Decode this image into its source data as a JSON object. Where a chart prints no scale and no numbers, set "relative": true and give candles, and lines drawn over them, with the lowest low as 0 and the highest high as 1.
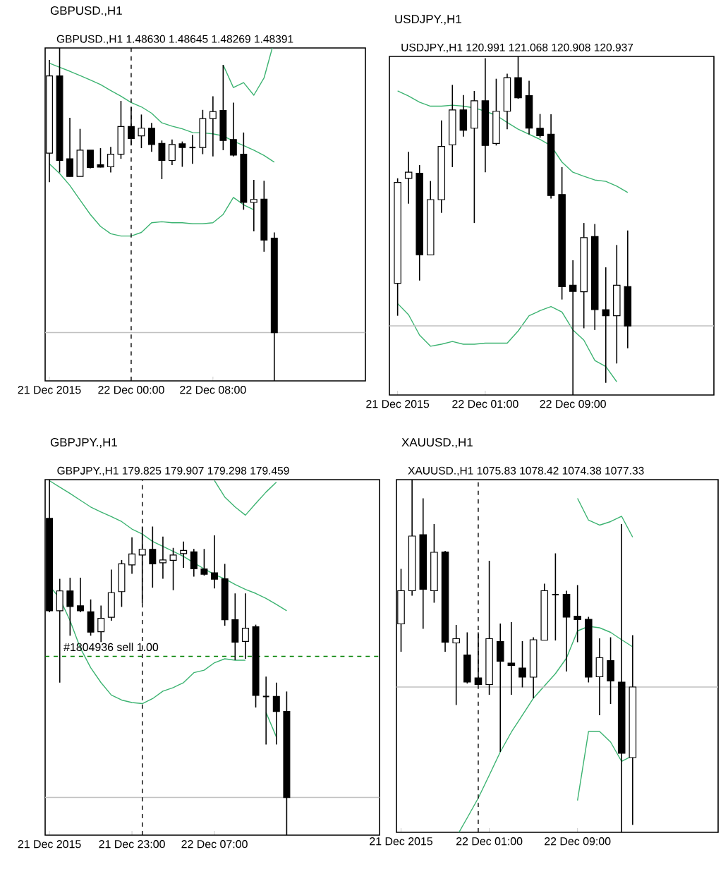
{
  "chart_data": [
    {
      "type": "candlestick",
      "title": "GBPUSD.,H1",
      "subtitle": "GBPUSD.,H1  1.48630 1.48645 1.48269 1.48391",
      "relative": true,
      "x": [
        "2015-12-21T16:00",
        "2015-12-21T17:00",
        "2015-12-21T18:00",
        "2015-12-21T19:00",
        "2015-12-21T20:00",
        "2015-12-21T21:00",
        "2015-12-21T22:00",
        "2015-12-21T23:00",
        "2015-12-22T00:00",
        "2015-12-22T01:00",
        "2015-12-22T02:00",
        "2015-12-22T03:00",
        "2015-12-22T04:00",
        "2015-12-22T05:00",
        "2015-12-22T06:00",
        "2015-12-22T07:00",
        "2015-12-22T08:00",
        "2015-12-22T09:00",
        "2015-12-22T10:00",
        "2015-12-22T11:00",
        "2015-12-22T12:00",
        "2015-12-22T13:00",
        "2015-12-22T14:00"
      ],
      "xlim": [
        "2015-12-21T15:35",
        "2015-12-22T22:55"
      ],
      "xticks": [
        {
          "value": "2015-12-21T16:00",
          "label": "21 Dec 2015"
        },
        {
          "value": "2015-12-22T00:00",
          "label": "22 Dec 00:00"
        },
        {
          "value": "2015-12-22T08:00",
          "label": "22 Dec 08:00"
        }
      ],
      "ohlc": [
        [
          0.684,
          0.964,
          0.597,
          0.916
        ],
        [
          0.916,
          1.0,
          0.626,
          0.662
        ],
        [
          0.667,
          0.79,
          0.614,
          0.614
        ],
        [
          0.614,
          0.757,
          0.614,
          0.693
        ],
        [
          0.693,
          0.693,
          0.638,
          0.641
        ],
        [
          0.649,
          0.699,
          0.641,
          0.642
        ],
        [
          0.643,
          0.703,
          0.626,
          0.681
        ],
        [
          0.681,
          0.841,
          0.667,
          0.764
        ],
        [
          0.764,
          0.823,
          0.707,
          0.728
        ],
        [
          0.736,
          0.8,
          0.699,
          0.759
        ],
        [
          0.759,
          0.775,
          0.688,
          0.71
        ],
        [
          0.713,
          0.722,
          0.606,
          0.662
        ],
        [
          0.662,
          0.725,
          0.648,
          0.71
        ],
        [
          0.712,
          0.719,
          0.643,
          0.701
        ],
        [
          0.701,
          0.739,
          0.652,
          0.701
        ],
        [
          0.701,
          0.814,
          0.681,
          0.788
        ],
        [
          0.788,
          0.855,
          0.674,
          0.809
        ],
        [
          0.812,
          0.949,
          0.693,
          0.722
        ],
        [
          0.725,
          0.836,
          0.674,
          0.678
        ],
        [
          0.681,
          0.746,
          0.514,
          0.536
        ],
        [
          0.536,
          0.604,
          0.449,
          0.545
        ],
        [
          0.546,
          0.601,
          0.388,
          0.423
        ],
        [
          0.429,
          0.446,
          0.0,
          0.145
        ]
      ],
      "series": [
        {
          "type": "line",
          "color": "#3cb371",
          "values": [
            null,
            null,
            null,
            null,
            null,
            null,
            null,
            null,
            null,
            null,
            null,
            null,
            null,
            null,
            null,
            null,
            null,
            0.949,
            0.881,
            0.896,
            0.858,
            0.91,
            1.022
          ]
        },
        {
          "type": "line",
          "color": "#3cb371",
          "values": [
            0.954,
            0.942,
            0.93,
            0.917,
            0.904,
            0.89,
            0.872,
            0.855,
            0.836,
            0.823,
            0.804,
            0.775,
            0.765,
            0.757,
            0.746,
            0.745,
            0.742,
            0.736,
            0.72,
            0.707,
            0.693,
            0.677,
            0.657
          ]
        },
        {
          "type": "line",
          "color": "#3cb371",
          "values": [
            0.652,
            0.623,
            0.587,
            0.543,
            0.5,
            0.464,
            0.442,
            0.435,
            0.435,
            0.446,
            0.475,
            0.478,
            0.475,
            0.475,
            0.472,
            0.472,
            0.475,
            0.5,
            0.551,
            0.529,
            0.514,
            null,
            null
          ]
        }
      ],
      "ref_lines": [
        {
          "axis": "y",
          "value": 0.145,
          "color": "#c0c0c0",
          "line_style": "solid"
        },
        {
          "axis": "x",
          "value": "2015-12-22T00:00",
          "color": "#000000",
          "line_style": "dashed"
        }
      ]
    },
    {
      "type": "candlestick",
      "title": "USDJPY.,H1",
      "subtitle": "USDJPY.,H1  120.991 121.068 120.908 120.937",
      "relative": true,
      "x": [
        "2015-12-21T17:00",
        "2015-12-21T18:00",
        "2015-12-21T19:00",
        "2015-12-21T20:00",
        "2015-12-21T21:00",
        "2015-12-21T22:00",
        "2015-12-21T23:00",
        "2015-12-22T00:00",
        "2015-12-22T01:00",
        "2015-12-22T02:00",
        "2015-12-22T03:00",
        "2015-12-22T04:00",
        "2015-12-22T05:00",
        "2015-12-22T06:00",
        "2015-12-22T07:00",
        "2015-12-22T08:00",
        "2015-12-22T09:00",
        "2015-12-22T10:00",
        "2015-12-22T11:00",
        "2015-12-22T12:00",
        "2015-12-22T13:00",
        "2015-12-22T14:00"
      ],
      "xlim": [
        "2015-12-21T16:15",
        "2015-12-22T21:52"
      ],
      "xticks": [
        {
          "value": "2015-12-21T17:00",
          "label": "21 Dec 2015"
        },
        {
          "value": "2015-12-22T01:00",
          "label": "22 Dec 01:00"
        },
        {
          "value": "2015-12-22T09:00",
          "label": "22 Dec 09:00"
        }
      ],
      "ohlc": [
        [
          0.33,
          0.64,
          0.234,
          0.628
        ],
        [
          0.64,
          0.718,
          0.565,
          0.658
        ],
        [
          0.655,
          0.679,
          0.338,
          0.414
        ],
        [
          0.414,
          0.632,
          0.414,
          0.577
        ],
        [
          0.577,
          0.811,
          0.538,
          0.734
        ],
        [
          0.739,
          0.916,
          0.673,
          0.842
        ],
        [
          0.842,
          0.886,
          0.763,
          0.782
        ],
        [
          0.788,
          0.898,
          0.508,
          0.869
        ],
        [
          0.869,
          0.995,
          0.658,
          0.737
        ],
        [
          0.743,
          0.934,
          0.737,
          0.838
        ],
        [
          0.838,
          0.949,
          0.785,
          0.937
        ],
        [
          0.937,
          1.0,
          0.875,
          0.878
        ],
        [
          0.884,
          0.928,
          0.77,
          0.788
        ],
        [
          0.788,
          0.83,
          0.76,
          0.766
        ],
        [
          0.77,
          0.829,
          0.58,
          0.589
        ],
        [
          0.592,
          0.673,
          0.282,
          0.32
        ],
        [
          0.324,
          0.398,
          0.0,
          0.306
        ],
        [
          0.305,
          0.508,
          0.197,
          0.465
        ],
        [
          0.468,
          0.505,
          0.192,
          0.252
        ],
        [
          0.252,
          0.377,
          0.036,
          0.234
        ],
        [
          0.234,
          0.443,
          0.093,
          0.324
        ],
        [
          0.32,
          0.486,
          0.138,
          0.204
        ]
      ],
      "series": [
        {
          "type": "line",
          "color": "#3cb371",
          "values": [
            0.898,
            0.883,
            0.865,
            0.853,
            0.853,
            0.856,
            0.853,
            0.848,
            0.838,
            0.826,
            0.805,
            0.785,
            0.77,
            0.755,
            0.736,
            0.688,
            0.658,
            0.646,
            0.635,
            0.631,
            0.617,
            0.598
          ]
        },
        {
          "type": "line",
          "color": "#3cb371",
          "values": [
            0.27,
            0.237,
            0.177,
            0.144,
            0.15,
            0.158,
            0.15,
            0.15,
            0.153,
            0.153,
            0.153,
            0.189,
            0.234,
            0.249,
            0.261,
            0.245,
            0.192,
            0.162,
            0.102,
            0.084,
            0.039,
            null
          ]
        }
      ],
      "ref_lines": [
        {
          "axis": "y",
          "value": 0.204,
          "color": "#c0c0c0",
          "line_style": "solid"
        }
      ]
    },
    {
      "type": "candlestick",
      "title": "GBPJPY.,H1",
      "subtitle": "GBPJPY.,H1  179.825 179.907 179.298 179.459",
      "relative": true,
      "x": [
        "2015-12-21T15:00",
        "2015-12-21T16:00",
        "2015-12-21T17:00",
        "2015-12-21T18:00",
        "2015-12-21T19:00",
        "2015-12-21T20:00",
        "2015-12-21T21:00",
        "2015-12-21T22:00",
        "2015-12-21T23:00",
        "2015-12-22T00:00",
        "2015-12-22T01:00",
        "2015-12-22T02:00",
        "2015-12-22T03:00",
        "2015-12-22T04:00",
        "2015-12-22T05:00",
        "2015-12-22T06:00",
        "2015-12-22T07:00",
        "2015-12-22T08:00",
        "2015-12-22T09:00",
        "2015-12-22T10:00",
        "2015-12-22T11:00",
        "2015-12-22T12:00",
        "2015-12-22T13:00",
        "2015-12-22T14:00"
      ],
      "xlim": [
        "2015-12-21T14:35",
        "2015-12-22T23:00"
      ],
      "xticks": [
        {
          "value": "2015-12-21T15:00",
          "label": "21 Dec 2015"
        },
        {
          "value": "2015-12-21T23:00",
          "label": "21 Dec 23:00"
        },
        {
          "value": "2015-12-22T07:00",
          "label": "22 Dec 07:00"
        }
      ],
      "ohlc": [
        [
          0.891,
          1.0,
          0.627,
          0.631
        ],
        [
          0.631,
          0.721,
          0.429,
          0.687
        ],
        [
          0.687,
          0.724,
          0.561,
          0.643
        ],
        [
          0.645,
          0.724,
          0.627,
          0.631
        ],
        [
          0.628,
          0.663,
          0.561,
          0.571
        ],
        [
          0.572,
          0.646,
          0.543,
          0.61
        ],
        [
          0.613,
          0.747,
          0.603,
          0.682
        ],
        [
          0.685,
          0.774,
          0.642,
          0.763
        ],
        [
          0.76,
          0.838,
          0.735,
          0.791
        ],
        [
          0.788,
          0.868,
          0.652,
          0.804
        ],
        [
          0.804,
          0.868,
          0.696,
          0.763
        ],
        [
          0.766,
          0.84,
          0.721,
          0.774
        ],
        [
          0.773,
          0.808,
          0.689,
          0.788
        ],
        [
          0.792,
          0.826,
          0.752,
          0.801
        ],
        [
          0.797,
          0.805,
          0.727,
          0.749
        ],
        [
          0.749,
          0.805,
          0.73,
          0.734
        ],
        [
          0.738,
          0.843,
          0.694,
          0.72
        ],
        [
          0.721,
          0.763,
          0.589,
          0.606
        ],
        [
          0.606,
          0.68,
          0.492,
          0.543
        ],
        [
          0.545,
          0.68,
          0.496,
          0.582
        ],
        [
          0.586,
          0.592,
          0.359,
          0.393
        ],
        [
          0.39,
          0.446,
          0.255,
          0.39
        ],
        [
          0.39,
          0.429,
          0.255,
          0.348
        ],
        [
          0.348,
          0.404,
          0.0,
          0.106
        ]
      ],
      "series": [
        {
          "type": "line",
          "color": "#3cb371",
          "values": [
            null,
            null,
            null,
            null,
            null,
            null,
            null,
            null,
            null,
            null,
            null,
            null,
            null,
            null,
            null,
            null,
            0.997,
            0.951,
            0.923,
            0.9,
            0.933,
            0.965,
            0.993,
            null
          ]
        },
        {
          "type": "line",
          "color": "#3cb371",
          "values": [
            0.997,
            0.979,
            0.961,
            0.942,
            0.923,
            0.909,
            0.896,
            0.882,
            0.861,
            0.847,
            0.826,
            0.812,
            0.798,
            0.784,
            0.766,
            0.749,
            0.733,
            0.721,
            0.705,
            0.691,
            0.68,
            0.666,
            0.649,
            0.631
          ]
        },
        {
          "type": "line",
          "color": "#3cb371",
          "values": [
            0.701,
            0.666,
            0.603,
            0.526,
            0.471,
            0.429,
            0.394,
            0.38,
            0.373,
            0.37,
            0.384,
            0.405,
            0.415,
            0.429,
            0.457,
            0.464,
            0.485,
            0.496,
            0.492,
            0.492,
            null,
            0.345,
            0.276,
            null
          ]
        }
      ],
      "ref_lines": [
        {
          "axis": "y",
          "value": 0.106,
          "color": "#c0c0c0",
          "line_style": "solid"
        },
        {
          "axis": "y",
          "value": 0.503,
          "color": "#008000",
          "line_style": "dashed",
          "label": "#1804936 sell 1.00"
        },
        {
          "axis": "x",
          "value": "2015-12-22T00:00",
          "color": "#000000",
          "line_style": "dashed"
        }
      ]
    },
    {
      "type": "candlestick",
      "title": "XAUUSD.,H1",
      "subtitle": "XAUUSD.,H1  1075.83 1078.42 1074.38 1077.33",
      "relative": true,
      "x": [
        "2015-12-21T17:00",
        "2015-12-21T18:00",
        "2015-12-21T19:00",
        "2015-12-21T20:00",
        "2015-12-21T21:00",
        "2015-12-21T22:00",
        "2015-12-21T23:00",
        "2015-12-22T00:00",
        "2015-12-22T01:00",
        "2015-12-22T02:00",
        "2015-12-22T03:00",
        "2015-12-22T04:00",
        "2015-12-22T05:00",
        "2015-12-22T06:00",
        "2015-12-22T07:00",
        "2015-12-22T08:00",
        "2015-12-22T09:00",
        "2015-12-22T10:00",
        "2015-12-22T11:00",
        "2015-12-22T12:00",
        "2015-12-22T13:00",
        "2015-12-22T14:00"
      ],
      "xlim": [
        "2015-12-21T16:35",
        "2015-12-22T21:45"
      ],
      "xticks": [
        {
          "value": "2015-12-21T17:00",
          "label": "21 Dec 2015"
        },
        {
          "value": "2015-12-22T01:00",
          "label": "22 Dec 01:00"
        },
        {
          "value": "2015-12-22T09:00",
          "label": "22 Dec 09:00"
        }
      ],
      "ohlc": [
        [
          0.591,
          0.747,
          0.512,
          0.685
        ],
        [
          0.685,
          1.0,
          0.671,
          0.84
        ],
        [
          0.844,
          0.947,
          0.577,
          0.689
        ],
        [
          0.685,
          0.874,
          0.651,
          0.794
        ],
        [
          0.795,
          0.798,
          0.512,
          0.539
        ],
        [
          0.537,
          0.588,
          0.361,
          0.549
        ],
        [
          0.503,
          0.567,
          0.422,
          0.426
        ],
        [
          0.438,
          0.567,
          0.419,
          0.419
        ],
        [
          0.419,
          0.77,
          0.39,
          0.549
        ],
        [
          0.541,
          0.592,
          0.228,
          0.485
        ],
        [
          0.48,
          0.596,
          0.39,
          0.473
        ],
        [
          0.466,
          0.542,
          0.411,
          0.44
        ],
        [
          0.44,
          0.553,
          0.38,
          0.546
        ],
        [
          0.545,
          0.705,
          0.544,
          0.685
        ],
        [
          0.674,
          0.791,
          0.544,
          0.674
        ],
        [
          0.675,
          0.685,
          0.456,
          0.61
        ],
        [
          0.613,
          0.701,
          0.539,
          0.603
        ],
        [
          0.604,
          0.611,
          0.425,
          0.44
        ],
        [
          0.441,
          0.55,
          0.332,
          0.495
        ],
        [
          0.487,
          0.553,
          0.364,
          0.429
        ],
        [
          0.426,
          0.874,
          0.0,
          0.224
        ],
        [
          0.212,
          0.559,
          0.021,
          0.412
        ]
      ],
      "series": [
        {
          "type": "line",
          "color": "#3cb371",
          "values": [
            null,
            null,
            null,
            null,
            null,
            null,
            null,
            null,
            null,
            null,
            null,
            null,
            null,
            null,
            null,
            null,
            0.947,
            0.885,
            0.871,
            0.881,
            0.896,
            0.837
          ]
        },
        {
          "type": "line",
          "color": "#3cb371",
          "values": [
            null,
            null,
            null,
            null,
            null,
            -0.014,
            0.041,
            0.097,
            0.162,
            0.228,
            0.284,
            0.332,
            0.38,
            0.415,
            0.45,
            0.494,
            0.571,
            0.584,
            0.58,
            0.567,
            0.546,
            0.526
          ]
        },
        {
          "type": "line",
          "color": "#3cb371",
          "values": [
            null,
            null,
            null,
            null,
            null,
            null,
            null,
            null,
            null,
            null,
            null,
            null,
            null,
            null,
            null,
            null,
            0.09,
            0.286,
            0.286,
            0.256,
            0.201,
            0.217
          ]
        }
      ],
      "ref_lines": [
        {
          "axis": "y",
          "value": 0.412,
          "color": "#c0c0c0",
          "line_style": "solid"
        },
        {
          "axis": "x",
          "value": "2015-12-22T00:00",
          "color": "#000000",
          "line_style": "dashed"
        }
      ]
    }
  ]
}
